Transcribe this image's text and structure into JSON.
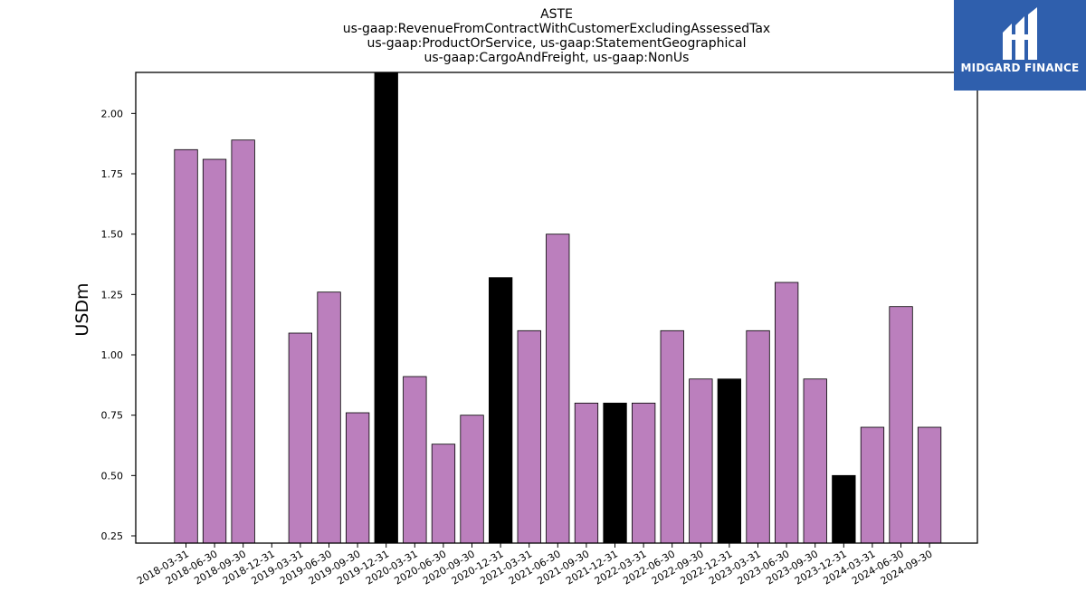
{
  "logo": {
    "text": "MIDGARD FINANCE",
    "icon": "midgard-logo-icon",
    "background": "#2f5fad"
  },
  "chart_data": {
    "type": "bar",
    "title": [
      "ASTE",
      "us-gaap:RevenueFromContractWithCustomerExcludingAssessedTax",
      "us-gaap:ProductOrService, us-gaap:StatementGeographical",
      "us-gaap:CargoAndFreight, us-gaap:NonUs"
    ],
    "xlabel": "",
    "ylabel": "USDm",
    "ylim": [
      0.22,
      2.17
    ],
    "yticks": [
      "0.25",
      "0.50",
      "0.75",
      "1.00",
      "1.25",
      "1.50",
      "1.75",
      "2.00"
    ],
    "grid": false,
    "colors": {
      "default": "#bb7fbd",
      "highlight": "#000000"
    },
    "categories": [
      "2018-03-31",
      "2018-06-30",
      "2018-09-30",
      "2018-12-31",
      "2019-03-31",
      "2019-06-30",
      "2019-09-30",
      "2019-12-31",
      "2020-03-31",
      "2020-06-30",
      "2020-09-30",
      "2020-12-31",
      "2021-03-31",
      "2021-06-30",
      "2021-09-30",
      "2021-12-31",
      "2022-03-31",
      "2022-06-30",
      "2022-09-30",
      "2022-12-31",
      "2023-03-31",
      "2023-06-30",
      "2023-09-30",
      "2023-12-31",
      "2024-03-31",
      "2024-06-30",
      "2024-09-30"
    ],
    "values": [
      1.85,
      1.81,
      1.89,
      null,
      1.09,
      1.26,
      0.76,
      2.17,
      0.91,
      0.63,
      0.75,
      1.32,
      1.1,
      1.5,
      0.8,
      0.8,
      0.8,
      1.1,
      0.9,
      0.9,
      1.1,
      1.3,
      0.9,
      0.5,
      0.7,
      1.2,
      0.7
    ],
    "highlighted": [
      false,
      false,
      false,
      false,
      false,
      false,
      false,
      true,
      false,
      false,
      false,
      true,
      false,
      false,
      false,
      true,
      false,
      false,
      false,
      true,
      false,
      false,
      false,
      true,
      false,
      false,
      false
    ]
  }
}
